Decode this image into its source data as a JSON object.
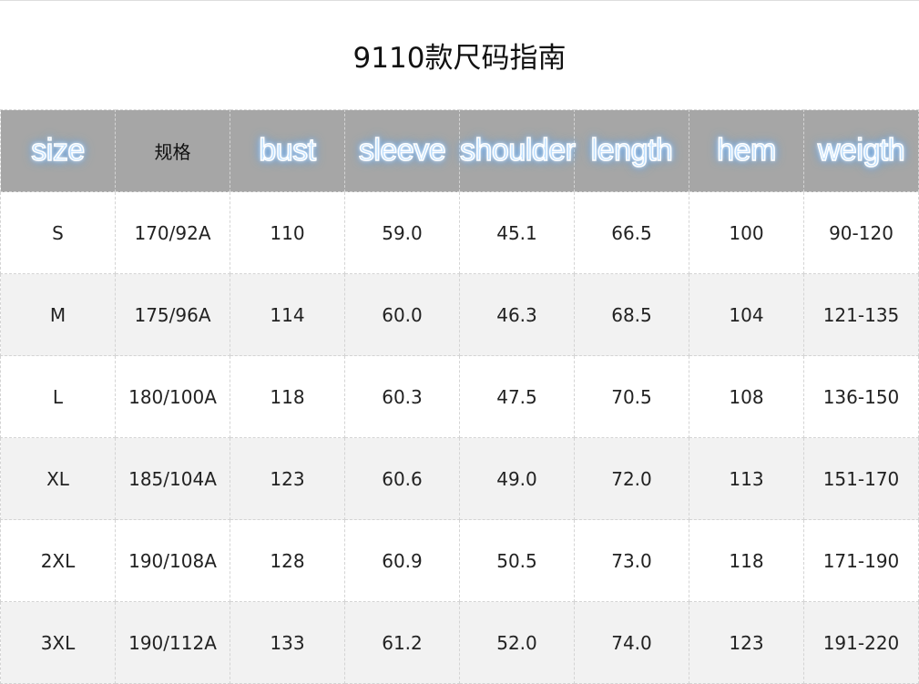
{
  "title": "9110款尺码指南",
  "headers": [
    {
      "label": "size",
      "style": "glow"
    },
    {
      "label": "规格",
      "style": "plain"
    },
    {
      "label": "bust",
      "style": "glow"
    },
    {
      "label": "sleeve",
      "style": "glow"
    },
    {
      "label": "shoulder",
      "style": "glow"
    },
    {
      "label": "length",
      "style": "glow"
    },
    {
      "label": "hem",
      "style": "glow"
    },
    {
      "label": "weigth",
      "style": "glow"
    }
  ],
  "rows": [
    [
      "S",
      "170/92A",
      "110",
      "59.0",
      "45.1",
      "66.5",
      "100",
      "90-120"
    ],
    [
      "M",
      "175/96A",
      "114",
      "60.0",
      "46.3",
      "68.5",
      "104",
      "121-135"
    ],
    [
      "L",
      "180/100A",
      "118",
      "60.3",
      "47.5",
      "70.5",
      "108",
      "136-150"
    ],
    [
      "XL",
      "185/104A",
      "123",
      "60.6",
      "49.0",
      "72.0",
      "113",
      "151-170"
    ],
    [
      "2XL",
      "190/108A",
      "128",
      "60.9",
      "50.5",
      "73.0",
      "118",
      "171-190"
    ],
    [
      "3XL",
      "190/112A",
      "133",
      "61.2",
      "52.0",
      "74.0",
      "123",
      "191-220"
    ]
  ],
  "colors": {
    "header_bg": "#a6a6a6",
    "alt_row_bg": "#f2f2f2",
    "glow": "#4aa0ff"
  }
}
